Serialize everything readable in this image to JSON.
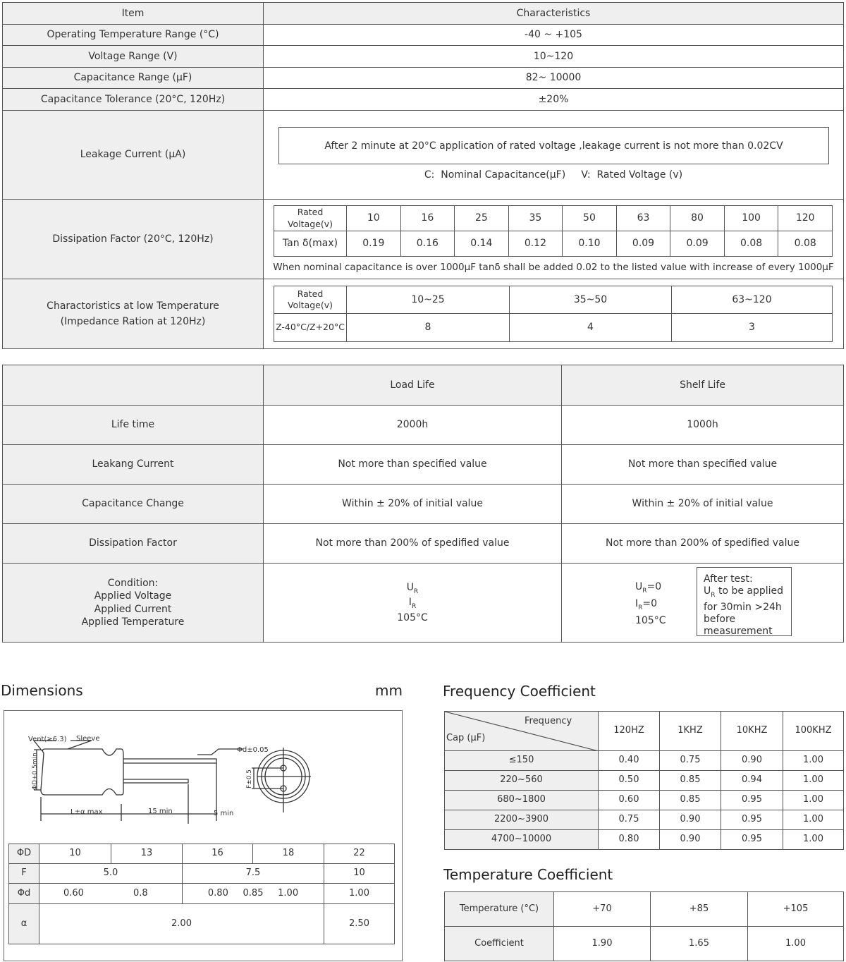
{
  "specs": {
    "header": [
      "Item",
      "Characteristics"
    ],
    "rows": [
      [
        "Operating Temperature Range (°C)",
        "-40 ~ +105"
      ],
      [
        "Voltage Range (V)",
        "10~120"
      ],
      [
        "Capacitance Range (µF)",
        "82~ 10000"
      ],
      [
        "Capacitance Tolerance (20°C, 120Hz)",
        "±20%"
      ]
    ],
    "leakage": {
      "label": "Leakage Current (µA)",
      "box": "After 2 minute at 20°C application of rated voltage ,leakage current is not more than 0.02CV",
      "note": "C:  Nominal Capacitance(µF)     V:  Rated Voltage (v)"
    },
    "dissipation": {
      "label": "Dissipation Factor (20°C, 120Hz)",
      "head": [
        "Rated Voltage(v)",
        "10",
        "16",
        "25",
        "35",
        "50",
        "63",
        "80",
        "100",
        "120"
      ],
      "vals": [
        "Tan δ(max)",
        "0.19",
        "0.16",
        "0.14",
        "0.12",
        "0.10",
        "0.09",
        "0.09",
        "0.08",
        "0.08"
      ],
      "note": "When nominal capacitance is over 1000µF tanδ shall be added 0.02 to the listed value with increase of every 1000µF"
    },
    "lowtemp": {
      "label1": "Charactoristics at low Temperature",
      "label2": "(Impedance Ration at 120Hz)",
      "head": [
        "Rated Voltage(v)",
        "10~25",
        "35~50",
        "63~120"
      ],
      "vals": [
        "Z-40°C/Z+20°C",
        "8",
        "4",
        "3"
      ]
    }
  },
  "life": {
    "header": [
      "",
      "Load Life",
      "Shelf  Life"
    ],
    "rows": [
      [
        "Life time",
        "2000h",
        "1000h"
      ],
      [
        "Leakang Current",
        "Not more than specified value",
        "Not more than specified value"
      ],
      [
        "Capacitance Change",
        "Within ± 20% of initial value",
        "Within ± 20% of initial value"
      ],
      [
        "Dissipation Factor",
        "Not more than 200% of  spedified value",
        "Not more than 200% of  spedified value"
      ]
    ],
    "condition": {
      "labels": [
        "Condition:",
        "Applied Voltage",
        "Applied Current",
        "Applied Temperature"
      ],
      "load": [
        "U",
        "R",
        "I",
        "R",
        "105°C"
      ],
      "shelf": [
        "U",
        "R",
        "=0",
        "I",
        "R",
        "=0",
        "105°C"
      ],
      "after": [
        "After test:",
        "U",
        "R",
        " to be applied",
        "for 30min >24h",
        "before",
        "measurement"
      ]
    }
  },
  "dimensions": {
    "title": "Dimensions",
    "unit": "mm",
    "drawing": {
      "vent": "Vent(≥6.3)",
      "sleeve": "Sleeve",
      "phid": "Φd±0.05",
      "phiD": "ΦD+0.5min",
      "L": "L±α  max",
      "min15": "15 min",
      "min5": "5 min",
      "F": "F±0.5"
    },
    "table": {
      "D": [
        "ΦD",
        "10",
        "13",
        "16",
        "18",
        "22"
      ],
      "F": [
        "F",
        "5.0",
        "7.5",
        "10"
      ],
      "d": [
        "Φd",
        "0.60",
        "0.8",
        "0.80",
        "0.85",
        "1.00",
        "1.00"
      ],
      "a": [
        "α",
        "2.00",
        "2.50"
      ]
    }
  },
  "freq": {
    "title": "Frequency Coefficient",
    "corner_top": "Frequency",
    "corner_bottom": "Cap (µF)",
    "head": [
      "120HZ",
      "1KHZ",
      "10KHZ",
      "100KHZ"
    ],
    "rows": [
      [
        "≤150",
        "0.40",
        "0.75",
        "0.90",
        "1.00"
      ],
      [
        "220~560",
        "0.50",
        "0.85",
        "0.94",
        "1.00"
      ],
      [
        "680~1800",
        "0.60",
        "0.85",
        "0.95",
        "1.00"
      ],
      [
        "2200~3900",
        "0.75",
        "0.90",
        "0.95",
        "1.00"
      ],
      [
        "4700~10000",
        "0.80",
        "0.90",
        "0.95",
        "1.00"
      ]
    ]
  },
  "temp": {
    "title": "Temperature Coefficient",
    "head": [
      "Temperature (°C)",
      "+70",
      "+85",
      "+105"
    ],
    "vals": [
      "Coefficient",
      "1.90",
      "1.65",
      "1.00"
    ]
  }
}
